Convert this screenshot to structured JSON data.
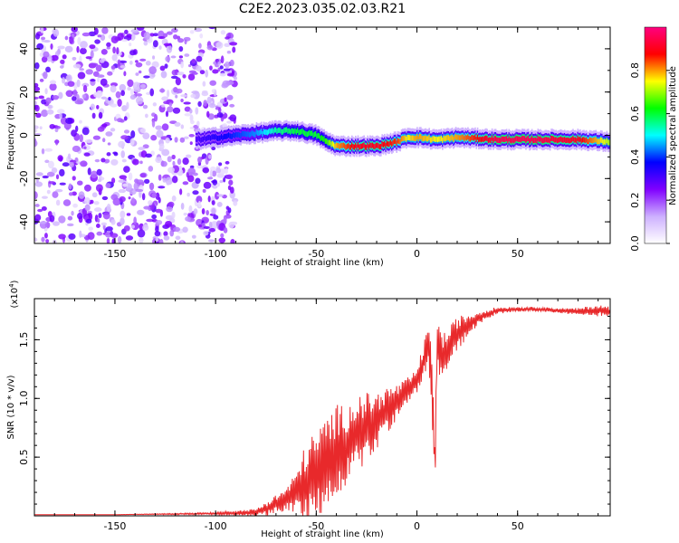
{
  "title": "C2E2.2023.035.02.03.R21",
  "chart_data": [
    {
      "type": "heatmap",
      "xlabel": "Height of straight line (km)",
      "ylabel": "Frequency (Hz)",
      "xlim": [
        -190,
        96
      ],
      "ylim": [
        -50,
        50
      ],
      "xticks": [
        -150,
        -100,
        -50,
        0,
        50
      ],
      "yticks": [
        -40,
        -20,
        0,
        20,
        40
      ],
      "colorbar": {
        "label": "Normalized spectral amplitude",
        "range": [
          0.0,
          1.0
        ],
        "ticks": [
          "0.0",
          "0.2",
          "0.4",
          "0.6",
          "0.8"
        ],
        "colors": [
          "#ffffff",
          "#cdb0ff",
          "#8000ff",
          "#0000ff",
          "#00ffff",
          "#00ff00",
          "#ffff00",
          "#ff0000",
          "#ff0080"
        ]
      },
      "ridge": {
        "x": [
          -110,
          -100,
          -90,
          -80,
          -70,
          -60,
          -50,
          -45,
          -40,
          -35,
          -30,
          -20,
          -10,
          -5,
          0,
          10,
          20,
          40,
          60,
          80,
          96
        ],
        "freq": [
          -2,
          -1,
          0,
          1,
          2,
          2,
          0,
          -3,
          -5,
          -5,
          -5,
          -5,
          -3,
          -1,
          -1,
          -2,
          -1,
          -2,
          -2,
          -2,
          -3
        ],
        "amplitude": [
          0.3,
          0.35,
          0.4,
          0.45,
          0.55,
          0.6,
          0.6,
          0.65,
          0.8,
          0.85,
          0.9,
          0.9,
          0.85,
          0.75,
          0.8,
          0.75,
          0.8,
          0.95,
          0.95,
          0.9,
          0.7
        ]
      },
      "noise_region": {
        "x_from": -190,
        "x_to": -90
      }
    },
    {
      "type": "line",
      "xlabel": "Height of straight line (km)",
      "ylabel": "SNR (10 * v/v)",
      "scale_note": "(x10",
      "scale_exp": "4",
      "series_color": "#e8292b",
      "xlim": [
        -190,
        96
      ],
      "ylim": [
        0,
        1.85
      ],
      "xticks": [
        -150,
        -100,
        -50,
        0,
        50
      ],
      "yticks": [
        "0.5",
        "1.0",
        "1.5"
      ],
      "ytick_values": [
        0.5,
        1.0,
        1.5
      ],
      "x": [
        -190,
        -150,
        -100,
        -80,
        -75,
        -70,
        -65,
        -60,
        -55,
        -50,
        -45,
        -40,
        -35,
        -30,
        -25,
        -20,
        -15,
        -10,
        -5,
        0,
        3,
        6,
        8,
        9,
        10,
        12,
        15,
        20,
        25,
        30,
        35,
        40,
        50,
        60,
        70,
        80,
        90,
        96
      ],
      "y": [
        0.01,
        0.01,
        0.02,
        0.03,
        0.06,
        0.1,
        0.14,
        0.2,
        0.28,
        0.35,
        0.45,
        0.55,
        0.6,
        0.7,
        0.75,
        0.8,
        0.9,
        0.97,
        1.05,
        1.15,
        1.3,
        1.45,
        0.9,
        0.4,
        1.5,
        1.35,
        1.4,
        1.55,
        1.62,
        1.68,
        1.72,
        1.75,
        1.76,
        1.76,
        1.75,
        1.74,
        1.75,
        1.74
      ],
      "spread": [
        0.0,
        0.0,
        0.01,
        0.03,
        0.06,
        0.08,
        0.1,
        0.18,
        0.35,
        0.38,
        0.4,
        0.4,
        0.35,
        0.32,
        0.3,
        0.25,
        0.2,
        0.15,
        0.12,
        0.1,
        0.15,
        0.2,
        0.3,
        0.2,
        0.25,
        0.2,
        0.18,
        0.15,
        0.1,
        0.06,
        0.04,
        0.03,
        0.02,
        0.02,
        0.02,
        0.03,
        0.05,
        0.04
      ]
    }
  ]
}
